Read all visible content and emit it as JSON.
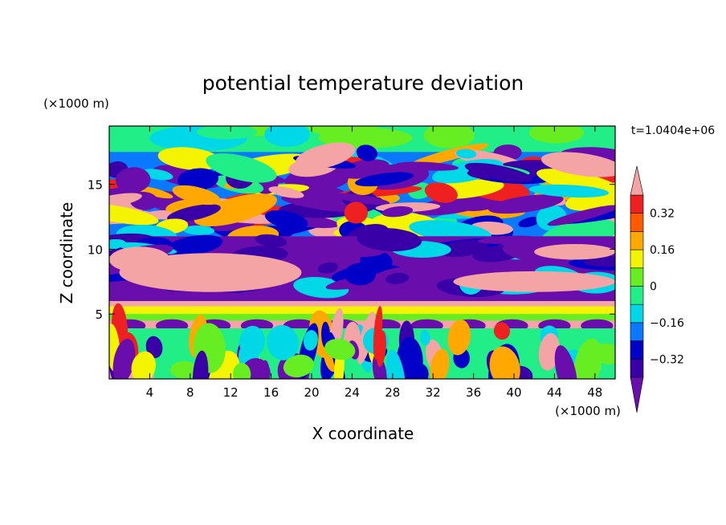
{
  "chart_data": {
    "type": "heatmap",
    "title": "potential temperature deviation",
    "xlabel": "X coordinate",
    "ylabel": "Z coordinate",
    "x_unit": "(×1000 m)",
    "y_unit": "(×1000 m)",
    "time_label": "t=1.0404e+06",
    "xlim": [
      0,
      50
    ],
    "ylim": [
      0,
      19.5
    ],
    "x_ticks": [
      4,
      8,
      12,
      16,
      20,
      24,
      28,
      32,
      36,
      40,
      44,
      48
    ],
    "y_ticks": [
      5,
      10,
      15
    ],
    "colorbar": {
      "levels": [
        -0.4,
        -0.32,
        -0.24,
        -0.16,
        -0.08,
        0,
        0.08,
        0.16,
        0.24,
        0.32,
        0.4
      ],
      "tick_labels": [
        "0.32",
        "0.16",
        "0",
        "−0.16",
        "−0.32"
      ],
      "tick_values": [
        0.32,
        0.16,
        0,
        -0.16,
        -0.32
      ],
      "colors": [
        "#6a0dad",
        "#3a00a8",
        "#0000c8",
        "#0a78ff",
        "#00d8e8",
        "#22ee88",
        "#66ee22",
        "#f4f400",
        "#ffa800",
        "#ff5a00",
        "#ee2020",
        "#f4a4a4"
      ],
      "extend": "both"
    },
    "field_description_bands": [
      {
        "z_range": [
          0,
          4.5
        ],
        "pattern": "vertical convective cells, mixed"
      },
      {
        "z_range": [
          4.5,
          6
        ],
        "pattern": "stable layer, positive"
      },
      {
        "z_range": [
          6,
          11
        ],
        "pattern": "strong positive near left, negative center"
      },
      {
        "z_range": [
          11,
          18
        ],
        "pattern": "wavy alternating bands"
      },
      {
        "z_range": [
          18,
          19.5
        ],
        "pattern": "weak near zero"
      }
    ]
  }
}
